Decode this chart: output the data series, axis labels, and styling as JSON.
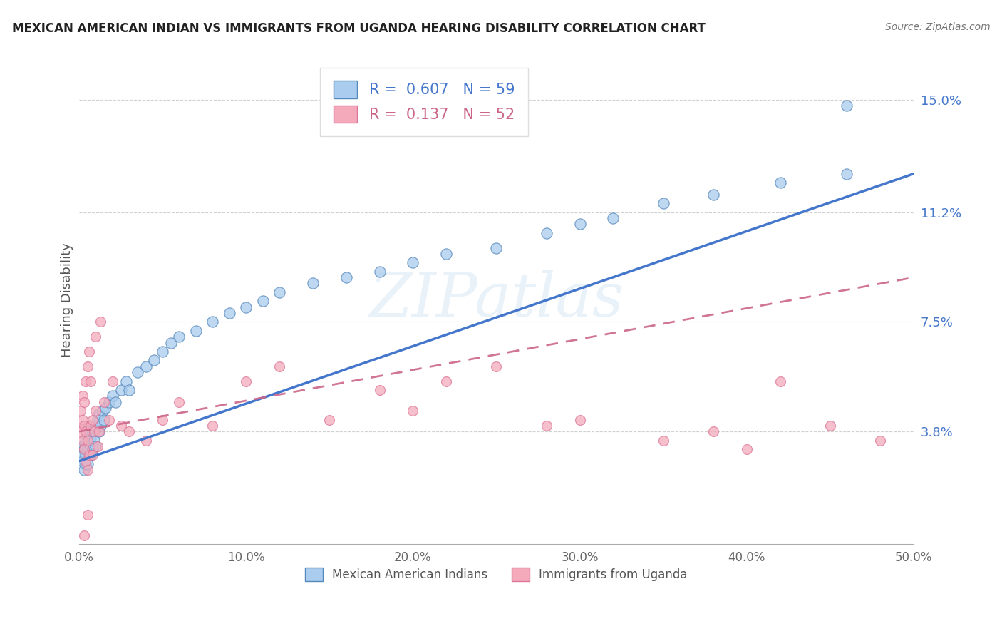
{
  "title": "MEXICAN AMERICAN INDIAN VS IMMIGRANTS FROM UGANDA HEARING DISABILITY CORRELATION CHART",
  "source": "Source: ZipAtlas.com",
  "ylabel": "Hearing Disability",
  "xlim": [
    0.0,
    0.5
  ],
  "ylim": [
    0.0,
    0.165
  ],
  "yticks": [
    0.038,
    0.075,
    0.112,
    0.15
  ],
  "ytick_labels": [
    "3.8%",
    "7.5%",
    "11.2%",
    "15.0%"
  ],
  "xticks": [
    0.0,
    0.1,
    0.2,
    0.3,
    0.4,
    0.5
  ],
  "xtick_labels": [
    "0.0%",
    "10.0%",
    "20.0%",
    "30.0%",
    "40.0%",
    "50.0%"
  ],
  "legend1_text": "R =  0.607   N = 59",
  "legend2_text": "R =  0.137   N = 52",
  "color_blue_fill": "#aaccee",
  "color_blue_edge": "#5588bb",
  "color_blue_line": "#4477cc",
  "color_pink_fill": "#f4aabb",
  "color_pink_edge": "#dd7799",
  "color_pink_line": "#cc6688",
  "watermark": "ZIPatlas",
  "legend_bottom_label1": "Mexican American Indians",
  "legend_bottom_label2": "Immigrants from Uganda",
  "blue_x": [
    0.001,
    0.002,
    0.002,
    0.003,
    0.003,
    0.004,
    0.004,
    0.004,
    0.005,
    0.005,
    0.005,
    0.006,
    0.006,
    0.007,
    0.007,
    0.008,
    0.008,
    0.009,
    0.01,
    0.01,
    0.011,
    0.012,
    0.012,
    0.013,
    0.014,
    0.015,
    0.016,
    0.018,
    0.02,
    0.022,
    0.025,
    0.028,
    0.03,
    0.035,
    0.04,
    0.045,
    0.05,
    0.055,
    0.06,
    0.07,
    0.08,
    0.09,
    0.1,
    0.11,
    0.12,
    0.14,
    0.16,
    0.18,
    0.2,
    0.22,
    0.25,
    0.28,
    0.3,
    0.32,
    0.35,
    0.38,
    0.42,
    0.46,
    0.46
  ],
  "blue_y": [
    0.03,
    0.028,
    0.033,
    0.025,
    0.032,
    0.027,
    0.035,
    0.03,
    0.032,
    0.038,
    0.027,
    0.034,
    0.04,
    0.03,
    0.036,
    0.032,
    0.038,
    0.035,
    0.04,
    0.033,
    0.042,
    0.038,
    0.044,
    0.04,
    0.045,
    0.042,
    0.046,
    0.048,
    0.05,
    0.048,
    0.052,
    0.055,
    0.052,
    0.058,
    0.06,
    0.062,
    0.065,
    0.068,
    0.07,
    0.072,
    0.075,
    0.078,
    0.08,
    0.082,
    0.085,
    0.088,
    0.09,
    0.092,
    0.095,
    0.098,
    0.1,
    0.105,
    0.108,
    0.11,
    0.115,
    0.118,
    0.122,
    0.125,
    0.148
  ],
  "pink_x": [
    0.001,
    0.001,
    0.002,
    0.002,
    0.002,
    0.003,
    0.003,
    0.003,
    0.004,
    0.004,
    0.004,
    0.005,
    0.005,
    0.005,
    0.006,
    0.006,
    0.007,
    0.007,
    0.008,
    0.008,
    0.009,
    0.01,
    0.01,
    0.011,
    0.012,
    0.013,
    0.015,
    0.018,
    0.02,
    0.025,
    0.03,
    0.04,
    0.05,
    0.06,
    0.08,
    0.1,
    0.12,
    0.15,
    0.18,
    0.2,
    0.22,
    0.25,
    0.28,
    0.3,
    0.35,
    0.38,
    0.4,
    0.42,
    0.45,
    0.48,
    0.005,
    0.003
  ],
  "pink_y": [
    0.038,
    0.045,
    0.042,
    0.035,
    0.05,
    0.048,
    0.032,
    0.04,
    0.038,
    0.055,
    0.028,
    0.06,
    0.035,
    0.025,
    0.065,
    0.03,
    0.04,
    0.055,
    0.042,
    0.03,
    0.038,
    0.045,
    0.07,
    0.033,
    0.038,
    0.075,
    0.048,
    0.042,
    0.055,
    0.04,
    0.038,
    0.035,
    0.042,
    0.048,
    0.04,
    0.055,
    0.06,
    0.042,
    0.052,
    0.045,
    0.055,
    0.06,
    0.04,
    0.042,
    0.035,
    0.038,
    0.032,
    0.055,
    0.04,
    0.035,
    0.01,
    0.003
  ]
}
